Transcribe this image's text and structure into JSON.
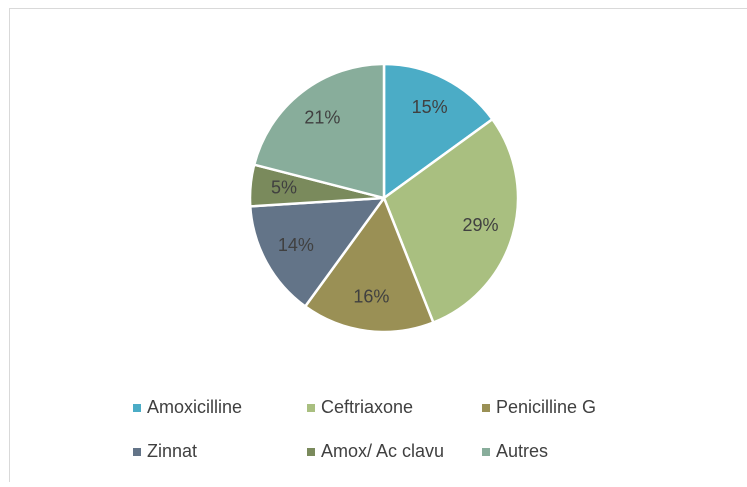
{
  "chart_data": {
    "type": "pie",
    "categories": [
      "Amoxicilline",
      "Ceftriaxone",
      "Penicilline G",
      "Zinnat",
      "Amox/ Ac clavu",
      "Autres"
    ],
    "values": [
      15,
      29,
      16,
      14,
      5,
      21
    ],
    "value_labels": [
      "15%",
      "29%",
      "16%",
      "14%",
      "5%",
      "21%"
    ],
    "colors": [
      "#4bacc6",
      "#a9bf80",
      "#9a9055",
      "#637488",
      "#7a8a5c",
      "#88ad9b"
    ],
    "legend": "bottom"
  }
}
